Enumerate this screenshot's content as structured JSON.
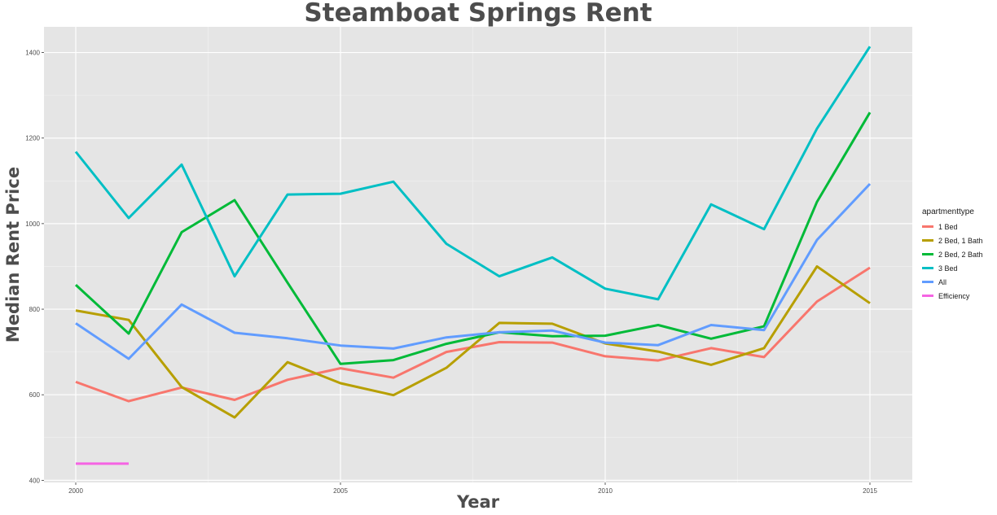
{
  "chart_data": {
    "type": "line",
    "title": "Steamboat Springs Rent",
    "xlabel": "Year",
    "ylabel": "Median Rent Price",
    "xlim": [
      1999.4,
      2015.8
    ],
    "ylim": [
      395,
      1460
    ],
    "x_ticks": [
      2000,
      2005,
      2010,
      2015
    ],
    "y_ticks": [
      400,
      600,
      800,
      1000,
      1200,
      1400
    ],
    "grid": true,
    "legend": {
      "title": "apartmenttype",
      "position": "right"
    },
    "x": [
      2000,
      2001,
      2002,
      2003,
      2004,
      2005,
      2006,
      2007,
      2008,
      2009,
      2010,
      2011,
      2012,
      2013,
      2014,
      2015
    ],
    "series": [
      {
        "name": "1 Bed",
        "color": "#f8766d",
        "values": [
          630,
          585,
          617,
          588,
          635,
          662,
          640,
          700,
          723,
          722,
          690,
          680,
          709,
          688,
          818,
          897
        ]
      },
      {
        "name": "2 Bed, 1 Bath",
        "color": "#b79f00",
        "values": [
          797,
          775,
          618,
          547,
          676,
          627,
          599,
          663,
          768,
          766,
          720,
          701,
          670,
          709,
          900,
          814
        ]
      },
      {
        "name": "2 Bed, 2 Bath",
        "color": "#00ba38",
        "values": [
          857,
          743,
          980,
          1055,
          862,
          672,
          681,
          719,
          746,
          737,
          738,
          763,
          731,
          760,
          1051,
          1260
        ]
      },
      {
        "name": "3 Bed",
        "color": "#00bfc4",
        "values": [
          1168,
          1013,
          1138,
          877,
          1068,
          1070,
          1098,
          953,
          877,
          921,
          848,
          823,
          1045,
          987,
          1222,
          1414
        ]
      },
      {
        "name": "All",
        "color": "#619cff",
        "values": [
          767,
          684,
          811,
          745,
          732,
          715,
          708,
          734,
          746,
          750,
          722,
          716,
          763,
          751,
          962,
          1093
        ]
      },
      {
        "name": "Efficiency",
        "color": "#f564e3",
        "values": [
          439,
          439,
          null,
          null,
          null,
          null,
          null,
          null,
          null,
          null,
          null,
          null,
          null,
          null,
          null,
          null
        ]
      }
    ]
  }
}
